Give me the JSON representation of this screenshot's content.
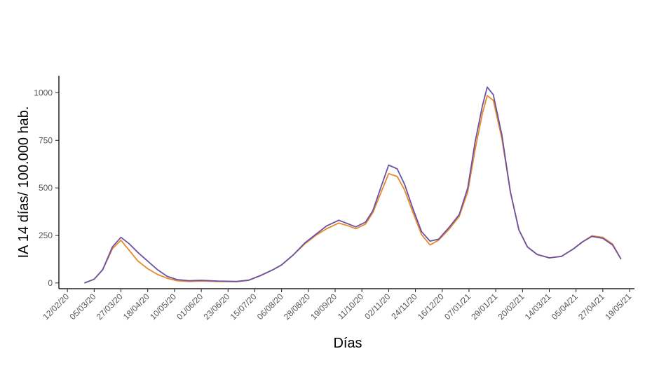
{
  "chart_data": {
    "type": "line",
    "x_label": "Días",
    "y_label": "IA 14 días/ 100.000 hab.",
    "x": [
      "2020-02-26",
      "2020-03-05",
      "2020-03-12",
      "2020-03-20",
      "2020-03-27",
      "2020-04-03",
      "2020-04-10",
      "2020-04-18",
      "2020-04-26",
      "2020-05-04",
      "2020-05-12",
      "2020-05-22",
      "2020-06-01",
      "2020-06-15",
      "2020-06-30",
      "2020-07-10",
      "2020-07-20",
      "2020-07-30",
      "2020-08-06",
      "2020-08-16",
      "2020-08-25",
      "2020-09-03",
      "2020-09-12",
      "2020-09-22",
      "2020-09-30",
      "2020-10-06",
      "2020-10-14",
      "2020-10-20",
      "2020-10-27",
      "2020-11-02",
      "2020-11-09",
      "2020-11-15",
      "2020-11-22",
      "2020-11-29",
      "2020-12-06",
      "2020-12-13",
      "2020-12-22",
      "2020-12-30",
      "2021-01-06",
      "2021-01-12",
      "2021-01-18",
      "2021-01-22",
      "2021-01-27",
      "2021-02-03",
      "2021-02-10",
      "2021-02-17",
      "2021-02-24",
      "2021-03-04",
      "2021-03-14",
      "2021-03-24",
      "2021-04-03",
      "2021-04-10",
      "2021-04-18",
      "2021-04-27",
      "2021-05-05",
      "2021-05-12"
    ],
    "series": [
      {
        "color": "#e8892b",
        "values": [
          0,
          20,
          70,
          180,
          225,
          170,
          115,
          75,
          45,
          25,
          12,
          8,
          10,
          8,
          7,
          14,
          40,
          70,
          95,
          150,
          205,
          250,
          285,
          315,
          300,
          285,
          310,
          370,
          480,
          575,
          560,
          490,
          370,
          255,
          200,
          225,
          285,
          350,
          480,
          700,
          890,
          985,
          960,
          760,
          480,
          280,
          190,
          150,
          132,
          140,
          180,
          215,
          248,
          240,
          205,
          125
        ]
      },
      {
        "color": "#6b52a3",
        "values": [
          0,
          20,
          70,
          190,
          240,
          205,
          160,
          115,
          70,
          35,
          18,
          12,
          14,
          10,
          8,
          15,
          40,
          70,
          95,
          150,
          210,
          255,
          300,
          330,
          310,
          295,
          320,
          380,
          510,
          620,
          600,
          520,
          390,
          270,
          220,
          230,
          295,
          360,
          500,
          740,
          930,
          1030,
          990,
          780,
          480,
          280,
          190,
          150,
          132,
          140,
          180,
          215,
          245,
          235,
          200,
          125
        ]
      }
    ],
    "xlim": [
      "2020-02-05",
      "2021-05-23"
    ],
    "xticks": [
      {
        "value": "2020-02-12",
        "label": "12/02/20"
      },
      {
        "value": "2020-03-05",
        "label": "05/03/20"
      },
      {
        "value": "2020-03-27",
        "label": "27/03/20"
      },
      {
        "value": "2020-04-18",
        "label": "18/04/20"
      },
      {
        "value": "2020-05-10",
        "label": "10/05/20"
      },
      {
        "value": "2020-06-01",
        "label": "01/06/20"
      },
      {
        "value": "2020-06-23",
        "label": "23/06/20"
      },
      {
        "value": "2020-07-15",
        "label": "15/07/20"
      },
      {
        "value": "2020-08-06",
        "label": "06/08/20"
      },
      {
        "value": "2020-08-28",
        "label": "28/08/20"
      },
      {
        "value": "2020-09-19",
        "label": "19/09/20"
      },
      {
        "value": "2020-10-11",
        "label": "11/10/20"
      },
      {
        "value": "2020-11-02",
        "label": "02/11/20"
      },
      {
        "value": "2020-11-24",
        "label": "24/11/20"
      },
      {
        "value": "2020-12-16",
        "label": "16/12/20"
      },
      {
        "value": "2021-01-07",
        "label": "07/01/21"
      },
      {
        "value": "2021-01-29",
        "label": "29/01/21"
      },
      {
        "value": "2021-02-20",
        "label": "20/02/21"
      },
      {
        "value": "2021-03-14",
        "label": "14/03/21"
      },
      {
        "value": "2021-04-05",
        "label": "05/04/21"
      },
      {
        "value": "2021-04-27",
        "label": "27/04/21"
      },
      {
        "value": "2021-05-19",
        "label": "19/05/21"
      }
    ],
    "ylim": [
      -30,
      1090
    ],
    "yticks": [
      0,
      250,
      500,
      750,
      1000
    ],
    "grid": false
  }
}
